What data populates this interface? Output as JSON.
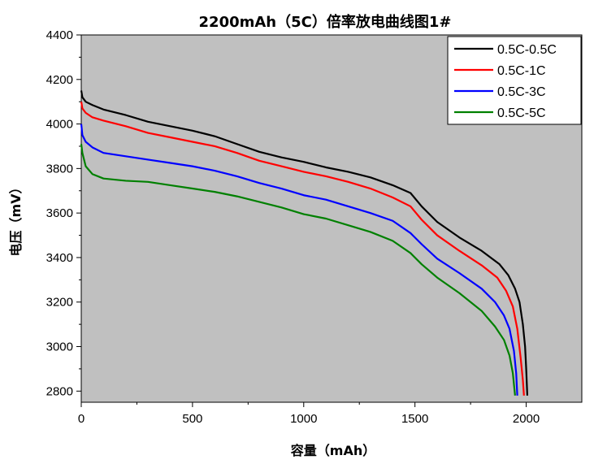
{
  "chart_data": {
    "type": "line",
    "title": "2200mAh（5C）倍率放电曲线图1#",
    "xlabel": "容量（mAh）",
    "ylabel": "电压（mV）",
    "xlim": [
      0,
      2250
    ],
    "ylim": [
      2750,
      4400
    ],
    "xticks": [
      0,
      500,
      1000,
      1500,
      2000
    ],
    "yticks": [
      2800,
      3000,
      3200,
      3400,
      3600,
      3800,
      4000,
      4200,
      4400
    ],
    "plot_background": "#c0c0c0",
    "grid": false,
    "legend_position": "top-right",
    "series": [
      {
        "name": "0.5C-0.5C",
        "color": "#000000",
        "points": [
          [
            0,
            4150
          ],
          [
            5,
            4120
          ],
          [
            20,
            4100
          ],
          [
            50,
            4085
          ],
          [
            100,
            4065
          ],
          [
            200,
            4040
          ],
          [
            300,
            4010
          ],
          [
            400,
            3990
          ],
          [
            500,
            3970
          ],
          [
            600,
            3945
          ],
          [
            700,
            3910
          ],
          [
            800,
            3875
          ],
          [
            900,
            3850
          ],
          [
            1000,
            3830
          ],
          [
            1100,
            3805
          ],
          [
            1200,
            3785
          ],
          [
            1300,
            3760
          ],
          [
            1400,
            3725
          ],
          [
            1480,
            3690
          ],
          [
            1530,
            3630
          ],
          [
            1600,
            3560
          ],
          [
            1700,
            3490
          ],
          [
            1800,
            3430
          ],
          [
            1880,
            3370
          ],
          [
            1920,
            3320
          ],
          [
            1950,
            3260
          ],
          [
            1970,
            3200
          ],
          [
            1985,
            3100
          ],
          [
            1995,
            3000
          ],
          [
            2000,
            2900
          ],
          [
            2005,
            2780
          ]
        ]
      },
      {
        "name": "0.5C-1C",
        "color": "#ff0000",
        "points": [
          [
            0,
            4100
          ],
          [
            5,
            4070
          ],
          [
            20,
            4050
          ],
          [
            50,
            4030
          ],
          [
            100,
            4015
          ],
          [
            200,
            3990
          ],
          [
            300,
            3960
          ],
          [
            400,
            3940
          ],
          [
            500,
            3920
          ],
          [
            600,
            3900
          ],
          [
            700,
            3870
          ],
          [
            800,
            3835
          ],
          [
            900,
            3810
          ],
          [
            1000,
            3785
          ],
          [
            1100,
            3765
          ],
          [
            1200,
            3740
          ],
          [
            1300,
            3710
          ],
          [
            1400,
            3670
          ],
          [
            1480,
            3630
          ],
          [
            1530,
            3570
          ],
          [
            1600,
            3500
          ],
          [
            1700,
            3430
          ],
          [
            1800,
            3365
          ],
          [
            1870,
            3310
          ],
          [
            1910,
            3250
          ],
          [
            1940,
            3180
          ],
          [
            1960,
            3080
          ],
          [
            1975,
            2950
          ],
          [
            1985,
            2850
          ],
          [
            1990,
            2780
          ]
        ]
      },
      {
        "name": "0.5C-3C",
        "color": "#0000ff",
        "points": [
          [
            0,
            4000
          ],
          [
            5,
            3950
          ],
          [
            20,
            3920
          ],
          [
            50,
            3895
          ],
          [
            100,
            3870
          ],
          [
            200,
            3855
          ],
          [
            300,
            3840
          ],
          [
            400,
            3825
          ],
          [
            500,
            3810
          ],
          [
            600,
            3790
          ],
          [
            700,
            3765
          ],
          [
            800,
            3735
          ],
          [
            900,
            3710
          ],
          [
            1000,
            3680
          ],
          [
            1100,
            3660
          ],
          [
            1200,
            3630
          ],
          [
            1300,
            3600
          ],
          [
            1400,
            3565
          ],
          [
            1480,
            3510
          ],
          [
            1530,
            3460
          ],
          [
            1600,
            3395
          ],
          [
            1700,
            3330
          ],
          [
            1800,
            3260
          ],
          [
            1860,
            3200
          ],
          [
            1900,
            3140
          ],
          [
            1925,
            3080
          ],
          [
            1945,
            2980
          ],
          [
            1955,
            2880
          ],
          [
            1960,
            2780
          ]
        ]
      },
      {
        "name": "0.5C-5C",
        "color": "#008000",
        "points": [
          [
            0,
            3910
          ],
          [
            5,
            3870
          ],
          [
            20,
            3810
          ],
          [
            50,
            3775
          ],
          [
            100,
            3755
          ],
          [
            200,
            3745
          ],
          [
            300,
            3740
          ],
          [
            400,
            3725
          ],
          [
            500,
            3710
          ],
          [
            600,
            3695
          ],
          [
            700,
            3675
          ],
          [
            800,
            3650
          ],
          [
            900,
            3625
          ],
          [
            1000,
            3595
          ],
          [
            1100,
            3575
          ],
          [
            1200,
            3545
          ],
          [
            1300,
            3515
          ],
          [
            1400,
            3475
          ],
          [
            1480,
            3420
          ],
          [
            1530,
            3370
          ],
          [
            1600,
            3310
          ],
          [
            1700,
            3240
          ],
          [
            1800,
            3160
          ],
          [
            1860,
            3090
          ],
          [
            1900,
            3030
          ],
          [
            1925,
            2960
          ],
          [
            1940,
            2880
          ],
          [
            1950,
            2780
          ]
        ]
      }
    ]
  }
}
